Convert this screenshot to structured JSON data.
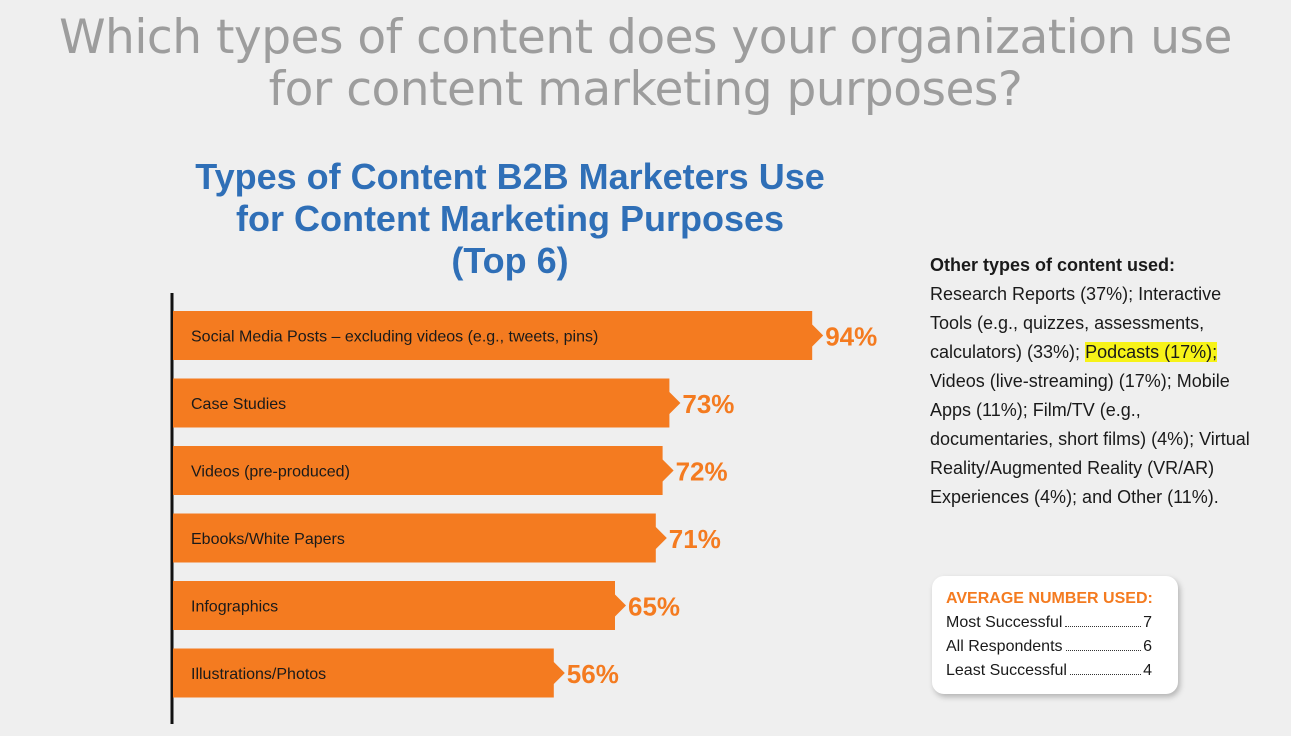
{
  "headline": {
    "line1": "Which types of content does your organization use",
    "line2": "for content marketing purposes?"
  },
  "chart_data": {
    "type": "bar",
    "orientation": "horizontal",
    "title_lines": [
      "Types of Content B2B Marketers Use",
      "for Content Marketing Purposes",
      "(Top 6)"
    ],
    "categories": [
      "Social Media Posts – excluding videos (e.g., tweets, pins)",
      "Case Studies",
      "Videos (pre-produced)",
      "Ebooks/White Papers",
      "Infographics",
      "Illustrations/Photos"
    ],
    "values": [
      94,
      73,
      72,
      71,
      65,
      56
    ],
    "value_labels": [
      "94%",
      "73%",
      "72%",
      "71%",
      "65%",
      "56%"
    ],
    "xlim": [
      0,
      100
    ],
    "grid": false,
    "bar_color": "#f47b20",
    "value_color": "#f47b20"
  },
  "other_types": {
    "heading": "Other types of content used:",
    "text_before": "Research Reports (37%); Interactive Tools (e.g., quizzes, assessments, calculators) (33%); ",
    "highlighted": "Podcasts (17%);",
    "text_after": " Videos (live-streaming) (17%); Mobile Apps (11%); Film/TV (e.g., documentaries, short films) (4%); Virtual Reality/Augmented Reality (VR/AR) Experiences (4%); and Other (11%).",
    "highlight_color": "#f7f318"
  },
  "average_box": {
    "title": "AVERAGE NUMBER USED:",
    "rows": [
      {
        "label": "Most Successful",
        "value": "7"
      },
      {
        "label": "All Respondents",
        "value": "6"
      },
      {
        "label": "Least Successful",
        "value": "4"
      }
    ]
  },
  "colors": {
    "title_blue": "#2f6fb7",
    "headline_gray": "#9d9d9d",
    "accent_orange": "#f47b20"
  }
}
